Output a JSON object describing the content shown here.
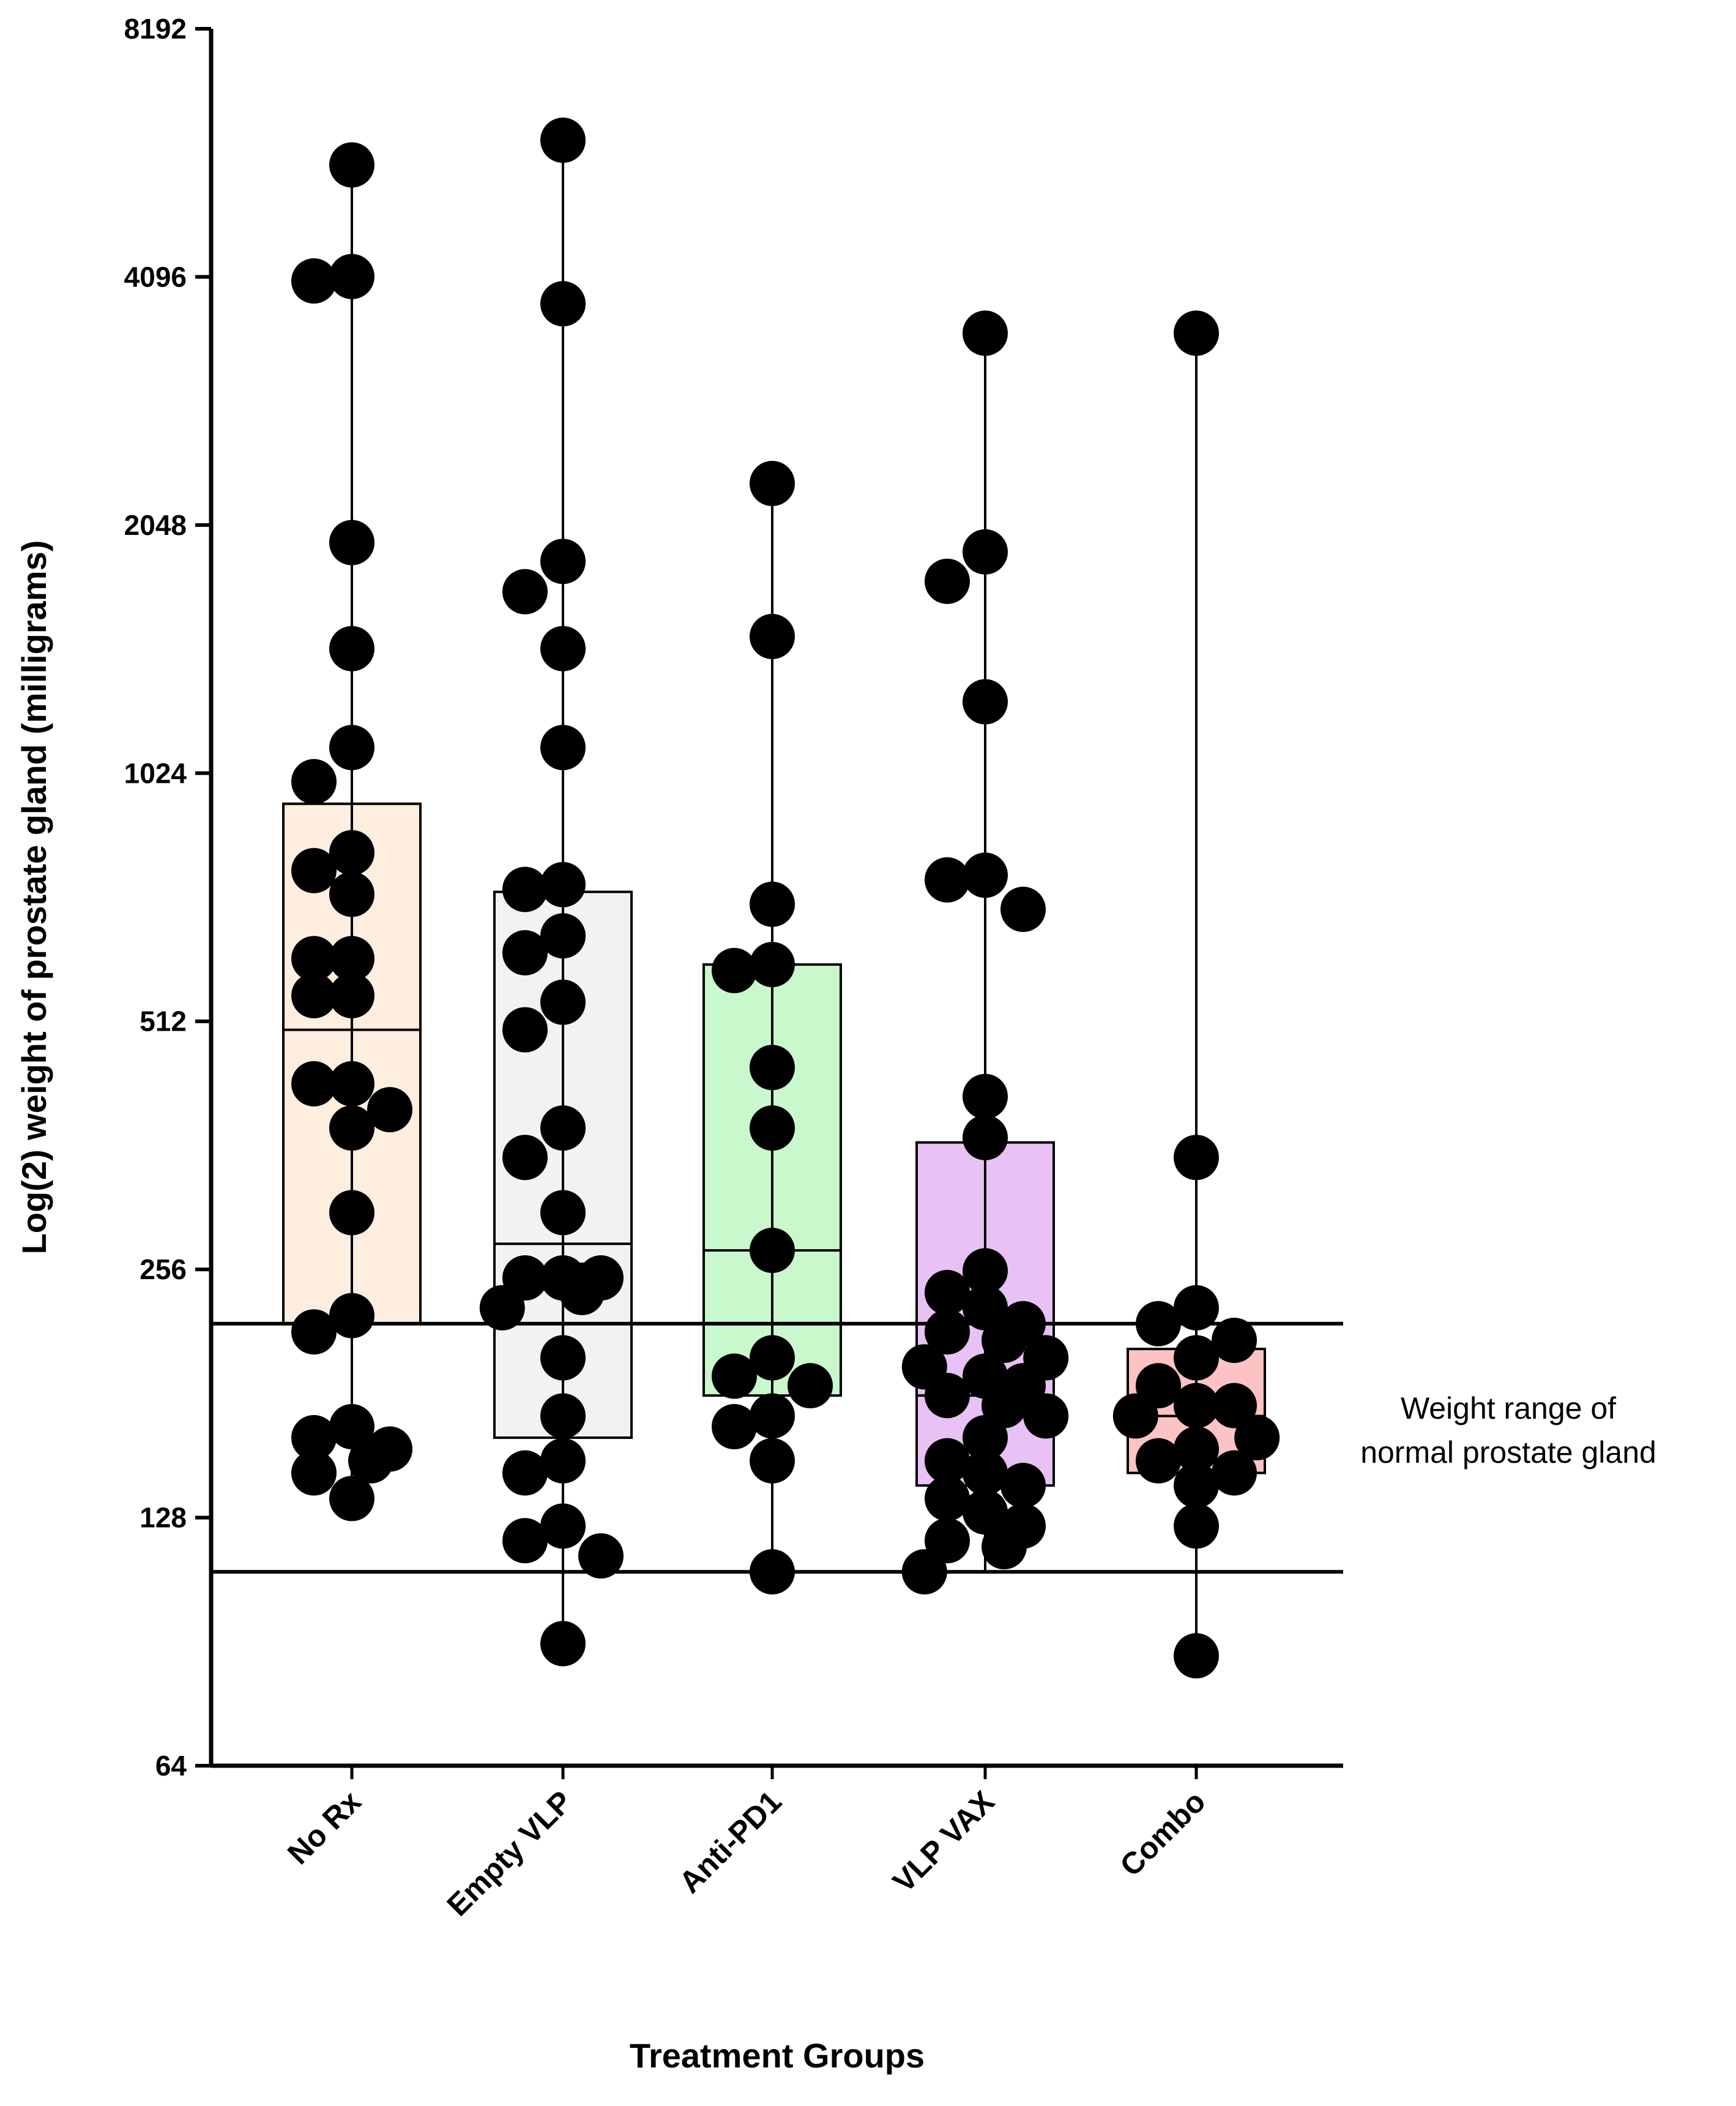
{
  "chart_data": {
    "type": "box-scatter",
    "title": "",
    "xlabel": "Treatment Groups",
    "ylabel": "Log(2) weight of prostate gland (milligrams)",
    "yscale": "log2",
    "ylim": [
      64,
      8192
    ],
    "yticks": [
      "64",
      "128",
      "256",
      "512",
      "1024",
      "2048",
      "4096",
      "8192"
    ],
    "reference_lines": [
      220,
      110
    ],
    "annotation": [
      "Weight range of",
      "normal prostate gland"
    ],
    "groups": [
      {
        "name": "No Rx",
        "color": "#fdeee0",
        "box": {
          "q1": 220,
          "median": 500,
          "q3": 940
        },
        "min": 135,
        "max": 5600,
        "points": [
          5600,
          4100,
          4050,
          1950,
          1450,
          1100,
          1000,
          820,
          780,
          730,
          610,
          610,
          550,
          550,
          430,
          430,
          400,
          380,
          300,
          225,
          215,
          165,
          160,
          155,
          150,
          145,
          135
        ]
      },
      {
        "name": "Empty VLP",
        "color": "#f2f2f2",
        "box": {
          "q1": 160,
          "median": 275,
          "q3": 735
        },
        "min": 90,
        "max": 6000,
        "points": [
          6000,
          3800,
          1850,
          1700,
          1450,
          1100,
          750,
          740,
          650,
          620,
          540,
          500,
          380,
          350,
          300,
          250,
          250,
          250,
          245,
          240,
          230,
          200,
          170,
          150,
          145,
          125,
          120,
          115,
          90
        ]
      },
      {
        "name": "Anti-PD1",
        "color": "#c8f8cc",
        "box": {
          "q1": 180,
          "median": 270,
          "q3": 600
        },
        "min": 110,
        "max": 2300,
        "points": [
          2300,
          1500,
          710,
          600,
          590,
          450,
          380,
          270,
          200,
          190,
          185,
          170,
          165,
          150,
          110
        ]
      },
      {
        "name": "VLP VAX",
        "color": "#e8c2f4",
        "box": {
          "q1": 140,
          "median": 180,
          "q3": 365
        },
        "min": 110,
        "max": 3500,
        "points": [
          3500,
          1900,
          1750,
          1250,
          770,
          760,
          700,
          415,
          370,
          255,
          240,
          230,
          220,
          215,
          210,
          200,
          195,
          190,
          185,
          180,
          175,
          170,
          160,
          150,
          145,
          140,
          135,
          130,
          125,
          120,
          118,
          110
        ]
      },
      {
        "name": "Combo",
        "color": "#fbc3c3",
        "box": {
          "q1": 145,
          "median": 170,
          "q3": 205
        },
        "min": 87,
        "max": 3500,
        "points": [
          3500,
          350,
          230,
          220,
          210,
          200,
          185,
          175,
          175,
          170,
          160,
          155,
          150,
          145,
          140,
          125,
          87
        ]
      }
    ]
  }
}
